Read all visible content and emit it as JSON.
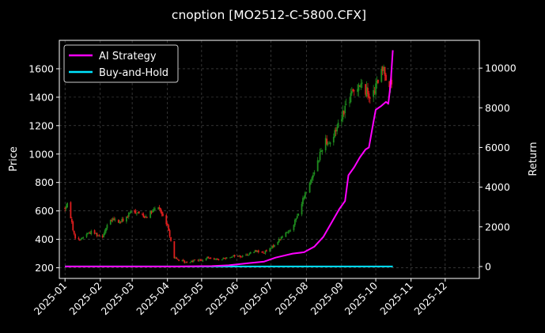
{
  "chart_data": {
    "type": "candlestick+line",
    "title": "cnoption [MO2512-C-5800.CFX]",
    "ylabel_left": "Price",
    "ylabel_right": "Return",
    "x_range": [
      "2024-12-27",
      "2025-12-31"
    ],
    "ylim_left": [
      125,
      1800
    ],
    "ylim_right": [
      -600,
      11400
    ],
    "xticks": [
      "2025-01",
      "2025-02",
      "2025-03",
      "2025-04",
      "2025-05",
      "2025-06",
      "2025-07",
      "2025-08",
      "2025-09",
      "2025-10",
      "2025-11",
      "2025-12"
    ],
    "yticks_left": [
      200,
      400,
      600,
      800,
      1000,
      1200,
      1400,
      1600
    ],
    "yticks_right": [
      0,
      2000,
      4000,
      6000,
      8000,
      10000
    ],
    "grid": true,
    "legend_position": "top-left",
    "colors": {
      "up": "#1e8c1e",
      "down": "#e01e1e",
      "ai_strategy": "#ff00ff",
      "buy_and_hold": "#00e5ff",
      "grid": "#555555",
      "axis": "#ffffff",
      "background": "#000000"
    },
    "price_path": [
      [
        "2025-01-01",
        620
      ],
      [
        "2025-01-03",
        640
      ],
      [
        "2025-01-06",
        560
      ],
      [
        "2025-01-09",
        430
      ],
      [
        "2025-01-12",
        390
      ],
      [
        "2025-01-16",
        410
      ],
      [
        "2025-01-20",
        440
      ],
      [
        "2025-01-25",
        455
      ],
      [
        "2025-01-30",
        430
      ],
      [
        "2025-02-03",
        425
      ],
      [
        "2025-02-07",
        500
      ],
      [
        "2025-02-12",
        540
      ],
      [
        "2025-02-18",
        520
      ],
      [
        "2025-02-24",
        555
      ],
      [
        "2025-03-01",
        600
      ],
      [
        "2025-03-06",
        590
      ],
      [
        "2025-03-12",
        560
      ],
      [
        "2025-03-18",
        590
      ],
      [
        "2025-03-24",
        630
      ],
      [
        "2025-03-28",
        560
      ],
      [
        "2025-04-02",
        470
      ],
      [
        "2025-04-07",
        270
      ],
      [
        "2025-04-12",
        250
      ],
      [
        "2025-04-18",
        235
      ],
      [
        "2025-04-25",
        260
      ],
      [
        "2025-05-01",
        250
      ],
      [
        "2025-05-08",
        275
      ],
      [
        "2025-05-15",
        255
      ],
      [
        "2025-05-22",
        270
      ],
      [
        "2025-05-29",
        285
      ],
      [
        "2025-06-05",
        280
      ],
      [
        "2025-06-12",
        300
      ],
      [
        "2025-06-18",
        320
      ],
      [
        "2025-06-24",
        305
      ],
      [
        "2025-06-30",
        330
      ],
      [
        "2025-07-06",
        380
      ],
      [
        "2025-07-12",
        430
      ],
      [
        "2025-07-18",
        470
      ],
      [
        "2025-07-24",
        560
      ],
      [
        "2025-07-30",
        700
      ],
      [
        "2025-08-05",
        820
      ],
      [
        "2025-08-11",
        950
      ],
      [
        "2025-08-17",
        1100
      ],
      [
        "2025-08-23",
        1080
      ],
      [
        "2025-08-29",
        1220
      ],
      [
        "2025-09-04",
        1330
      ],
      [
        "2025-09-10",
        1420
      ],
      [
        "2025-09-16",
        1500
      ],
      [
        "2025-09-22",
        1450
      ],
      [
        "2025-09-28",
        1400
      ],
      [
        "2025-10-03",
        1520
      ],
      [
        "2025-10-08",
        1600
      ],
      [
        "2025-10-12",
        1500
      ],
      [
        "2025-10-15",
        1490
      ]
    ],
    "series": [
      {
        "name": "AI Strategy",
        "points": [
          [
            "2025-01-01",
            0
          ],
          [
            "2025-04-10",
            0
          ],
          [
            "2025-05-10",
            20
          ],
          [
            "2025-05-25",
            60
          ],
          [
            "2025-06-10",
            160
          ],
          [
            "2025-06-25",
            250
          ],
          [
            "2025-07-05",
            450
          ],
          [
            "2025-07-20",
            650
          ],
          [
            "2025-07-30",
            720
          ],
          [
            "2025-08-08",
            1000
          ],
          [
            "2025-08-16",
            1500
          ],
          [
            "2025-08-24",
            2300
          ],
          [
            "2025-08-30",
            2900
          ],
          [
            "2025-09-04",
            3300
          ],
          [
            "2025-09-07",
            4600
          ],
          [
            "2025-09-12",
            5000
          ],
          [
            "2025-09-17",
            5500
          ],
          [
            "2025-09-22",
            5900
          ],
          [
            "2025-09-25",
            6000
          ],
          [
            "2025-09-29",
            7300
          ],
          [
            "2025-10-01",
            7900
          ],
          [
            "2025-10-06",
            8100
          ],
          [
            "2025-10-10",
            8300
          ],
          [
            "2025-10-12",
            8200
          ],
          [
            "2025-10-14",
            9200
          ],
          [
            "2025-10-16",
            10900
          ]
        ]
      },
      {
        "name": "Buy-and-Hold",
        "points": [
          [
            "2025-01-01",
            0
          ],
          [
            "2025-10-16",
            0
          ]
        ]
      }
    ]
  }
}
